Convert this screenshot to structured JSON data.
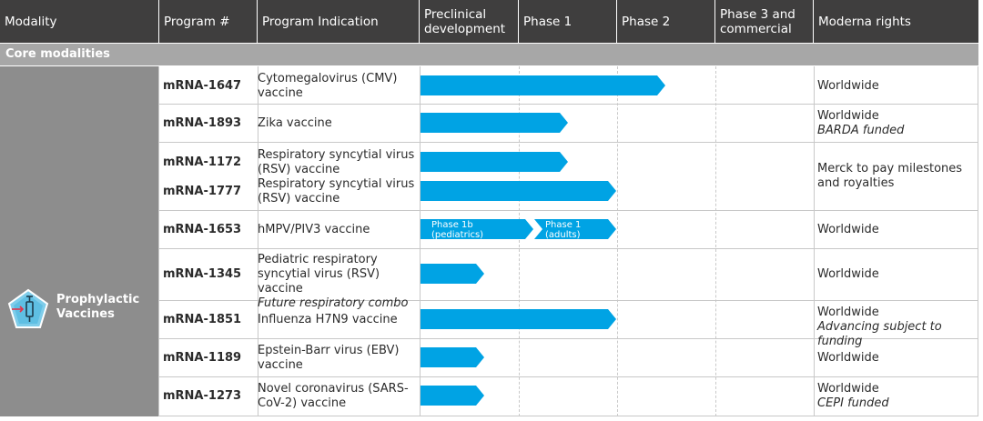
{
  "header": {
    "modality": "Modality",
    "program": "Program #",
    "indication": "Program Indication",
    "preclinical": "Preclinical development",
    "phase1": "Phase 1",
    "phase2": "Phase 2",
    "phase3": "Phase 3 and commercial",
    "rights": "Moderna rights"
  },
  "section": {
    "title": "Core modalities"
  },
  "modality": {
    "label": "Prophylactic Vaccines",
    "icon": "syringe-pentagon-icon",
    "color": "#8d8d8d"
  },
  "colors": {
    "bar": "#00a3e4",
    "header": "#3f3e3e",
    "section": "#a7a7a7"
  },
  "rows": [
    {
      "program": "mRNA-1647",
      "indication": "Cytomegalovirus (CMV) vaccine",
      "indication_note": "",
      "rights": "Worldwide",
      "rights_note": "",
      "stage": "Phase 2"
    },
    {
      "program": "mRNA-1893",
      "indication": "Zika vaccine",
      "indication_note": "",
      "rights": "Worldwide",
      "rights_note": "BARDA funded",
      "stage": "Phase 1"
    },
    {
      "program": "mRNA-1172",
      "indication": "Respiratory syncytial virus (RSV) vaccine",
      "indication_note": "",
      "rights": "Merck to pay milestones and royalties",
      "rights_note": "",
      "stage": "Phase 1"
    },
    {
      "program": "mRNA-1777",
      "indication": "Respiratory syncytial virus (RSV) vaccine",
      "indication_note": "",
      "rights": "",
      "rights_note": "",
      "stage": "Phase 1"
    },
    {
      "program": "mRNA-1653",
      "indication": "hMPV/PIV3 vaccine",
      "indication_note": "",
      "rights": "Worldwide",
      "rights_note": "",
      "stage": "Phase 1",
      "bar_labels": [
        "Phase 1b (pediatrics)",
        "Phase 1 (adults)"
      ]
    },
    {
      "program": "mRNA-1345",
      "indication": "Pediatric respiratory syncytial virus (RSV) vaccine",
      "indication_note": "Future respiratory combo",
      "rights": "Worldwide",
      "rights_note": "",
      "stage": "Preclinical"
    },
    {
      "program": "mRNA-1851",
      "indication": "Influenza H7N9 vaccine",
      "indication_note": "",
      "rights": "Worldwide",
      "rights_note": "Advancing subject to funding",
      "stage": "Phase 1"
    },
    {
      "program": "mRNA-1189",
      "indication": "Epstein-Barr virus (EBV) vaccine",
      "indication_note": "",
      "rights": "Worldwide",
      "rights_note": "",
      "stage": "Preclinical"
    },
    {
      "program": "mRNA-1273",
      "indication": "Novel coronavirus (SARS-CoV-2) vaccine",
      "indication_note": "",
      "rights": "Worldwide",
      "rights_note": "CEPI funded",
      "stage": "Preclinical"
    }
  ]
}
